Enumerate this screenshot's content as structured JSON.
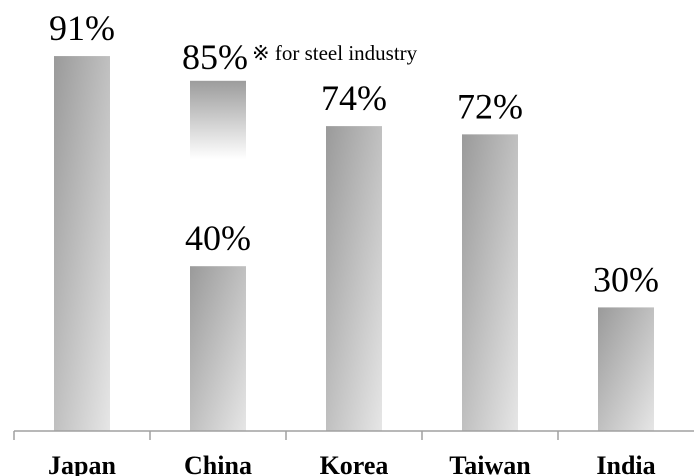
{
  "chart_data": {
    "type": "bar",
    "title": "",
    "xlabel": "",
    "ylabel": "",
    "ylim": [
      0,
      100
    ],
    "grid": false,
    "categories": [
      "Japan",
      "China",
      "Korea",
      "Taiwan",
      "India"
    ],
    "values": [
      91,
      40,
      74,
      72,
      30
    ],
    "value_labels": [
      "91%",
      "40%",
      "74%",
      "72%",
      "30%"
    ],
    "extra_bar": {
      "category": "China",
      "value": 85,
      "label": "85%",
      "note": "※ for steel industry",
      "faded_lower_bound": 66
    },
    "colors": {
      "bar_dark": "#9a9a9a",
      "bar_light": "#e6e6e6",
      "axis": "#a0a0a0"
    }
  }
}
